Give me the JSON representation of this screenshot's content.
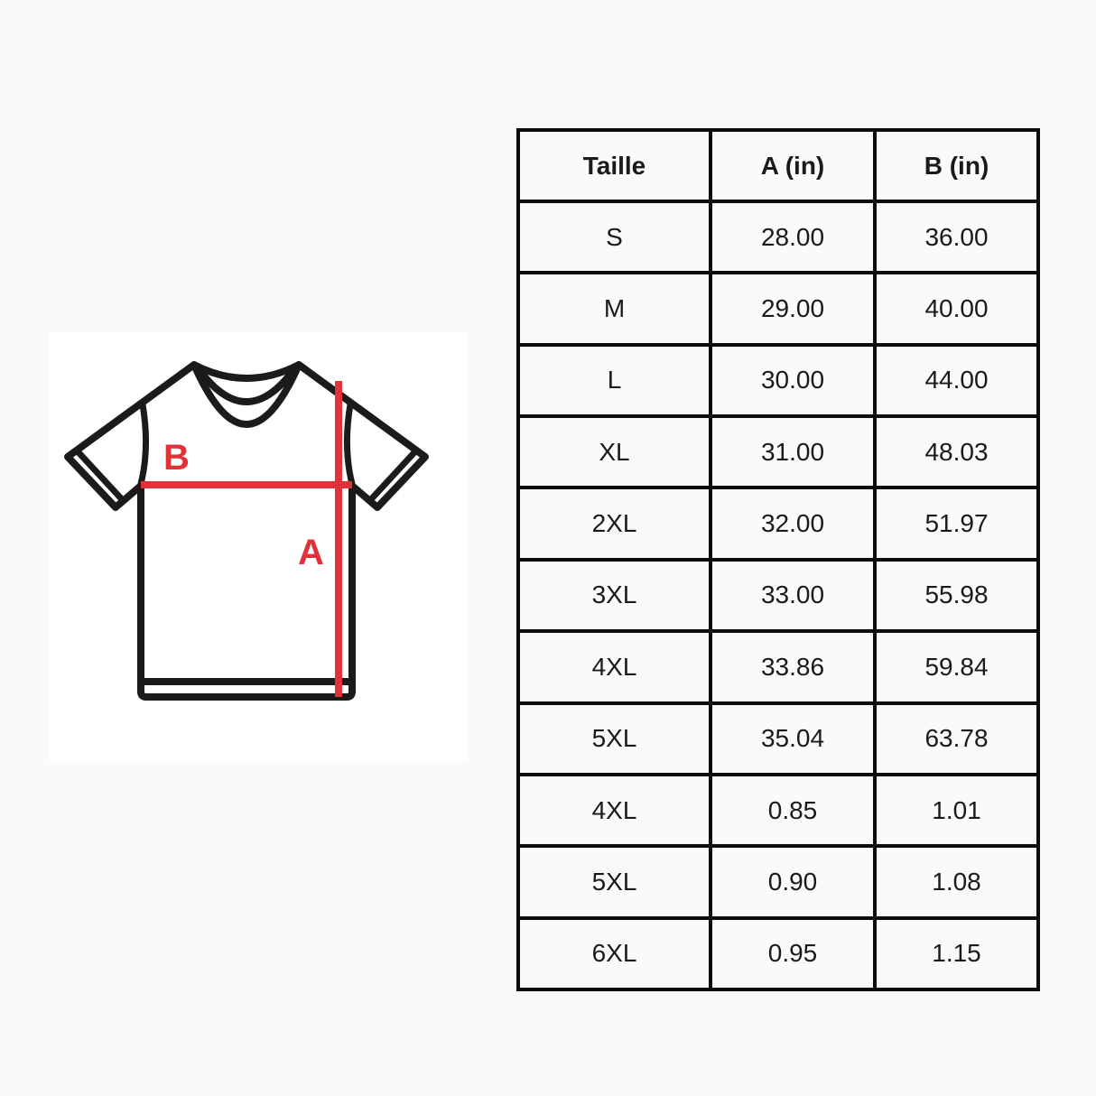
{
  "page": {
    "background_color": "#fafafa",
    "panel_color": "#ffffff"
  },
  "colors": {
    "accent_red": "#e03238",
    "outline_black": "#1d1b1a",
    "table_border": "#0d0d0d",
    "text": "#1a1a1a"
  },
  "diagram": {
    "description_icon": "tshirt-outline-icon",
    "label_a": "A",
    "label_b": "B"
  },
  "table": {
    "headers": [
      "Taille",
      "A (in)",
      "B (in)"
    ],
    "rows": [
      {
        "size": "S",
        "a": "28.00",
        "b": "36.00"
      },
      {
        "size": "M",
        "a": "29.00",
        "b": "40.00"
      },
      {
        "size": "L",
        "a": "30.00",
        "b": "44.00"
      },
      {
        "size": "XL",
        "a": "31.00",
        "b": "48.03"
      },
      {
        "size": "2XL",
        "a": "32.00",
        "b": "51.97"
      },
      {
        "size": "3XL",
        "a": "33.00",
        "b": "55.98"
      },
      {
        "size": "4XL",
        "a": "33.86",
        "b": "59.84"
      },
      {
        "size": "5XL",
        "a": "35.04",
        "b": "63.78"
      },
      {
        "size": "4XL",
        "a": "0.85",
        "b": "1.01"
      },
      {
        "size": "5XL",
        "a": "0.90",
        "b": "1.08"
      },
      {
        "size": "6XL",
        "a": "0.95",
        "b": "1.15"
      }
    ]
  }
}
